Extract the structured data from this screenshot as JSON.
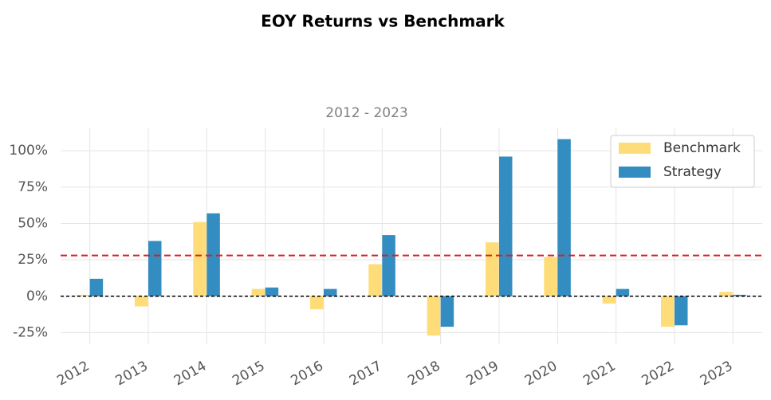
{
  "chart_data": {
    "type": "bar",
    "title": "EOY Returns  vs Benchmark",
    "subtitle": "2012 - 2023",
    "categories": [
      "2012",
      "2013",
      "2014",
      "2015",
      "2016",
      "2017",
      "2018",
      "2019",
      "2020",
      "2021",
      "2022",
      "2023"
    ],
    "series": [
      {
        "name": "Benchmark",
        "color": "#fedd78",
        "values": [
          1,
          -7,
          51,
          5,
          -9,
          22,
          -27,
          37,
          27,
          -5,
          -21,
          3
        ]
      },
      {
        "name": "Strategy",
        "color": "#348dc1",
        "values": [
          12,
          38,
          57,
          6,
          5,
          42,
          -21,
          96,
          108,
          5,
          -20,
          1
        ]
      }
    ],
    "mean_line": {
      "value": 28,
      "color": "#e41a1c"
    },
    "ylim": [
      -33,
      116
    ],
    "yticks": [
      {
        "value": -25,
        "label": "-25%"
      },
      {
        "value": 0,
        "label": "0%"
      },
      {
        "value": 25,
        "label": "25%"
      },
      {
        "value": 50,
        "label": "50%"
      },
      {
        "value": 75,
        "label": "75%"
      },
      {
        "value": 100,
        "label": "100%"
      }
    ],
    "grid": true,
    "legend": "upper right"
  }
}
